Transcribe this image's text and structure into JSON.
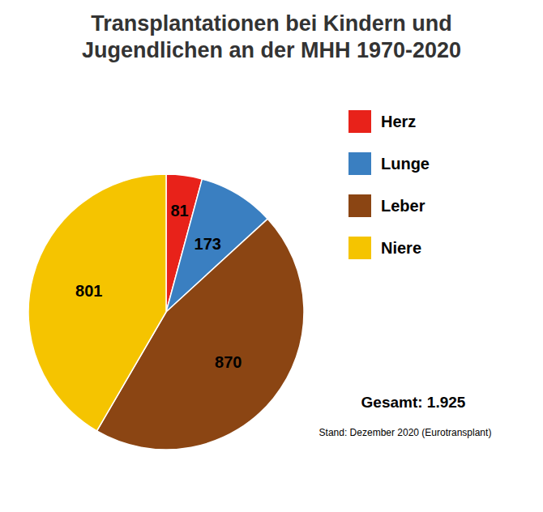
{
  "chart_data": {
    "type": "pie",
    "title": "Transplantationen bei Kindern und\nJugendlichen an der MHH 1970-2020",
    "categories": [
      "Herz",
      "Lunge",
      "Leber",
      "Niere"
    ],
    "values": [
      81,
      173,
      870,
      801
    ],
    "colors": [
      "#e8221a",
      "#3a7fc1",
      "#8b4513",
      "#f5c400"
    ],
    "data_labels": true,
    "legend": "right",
    "annotations": [
      "Gesamt: 1.925",
      "Stand: Dezember 2020 (Eurotransplant)"
    ]
  }
}
